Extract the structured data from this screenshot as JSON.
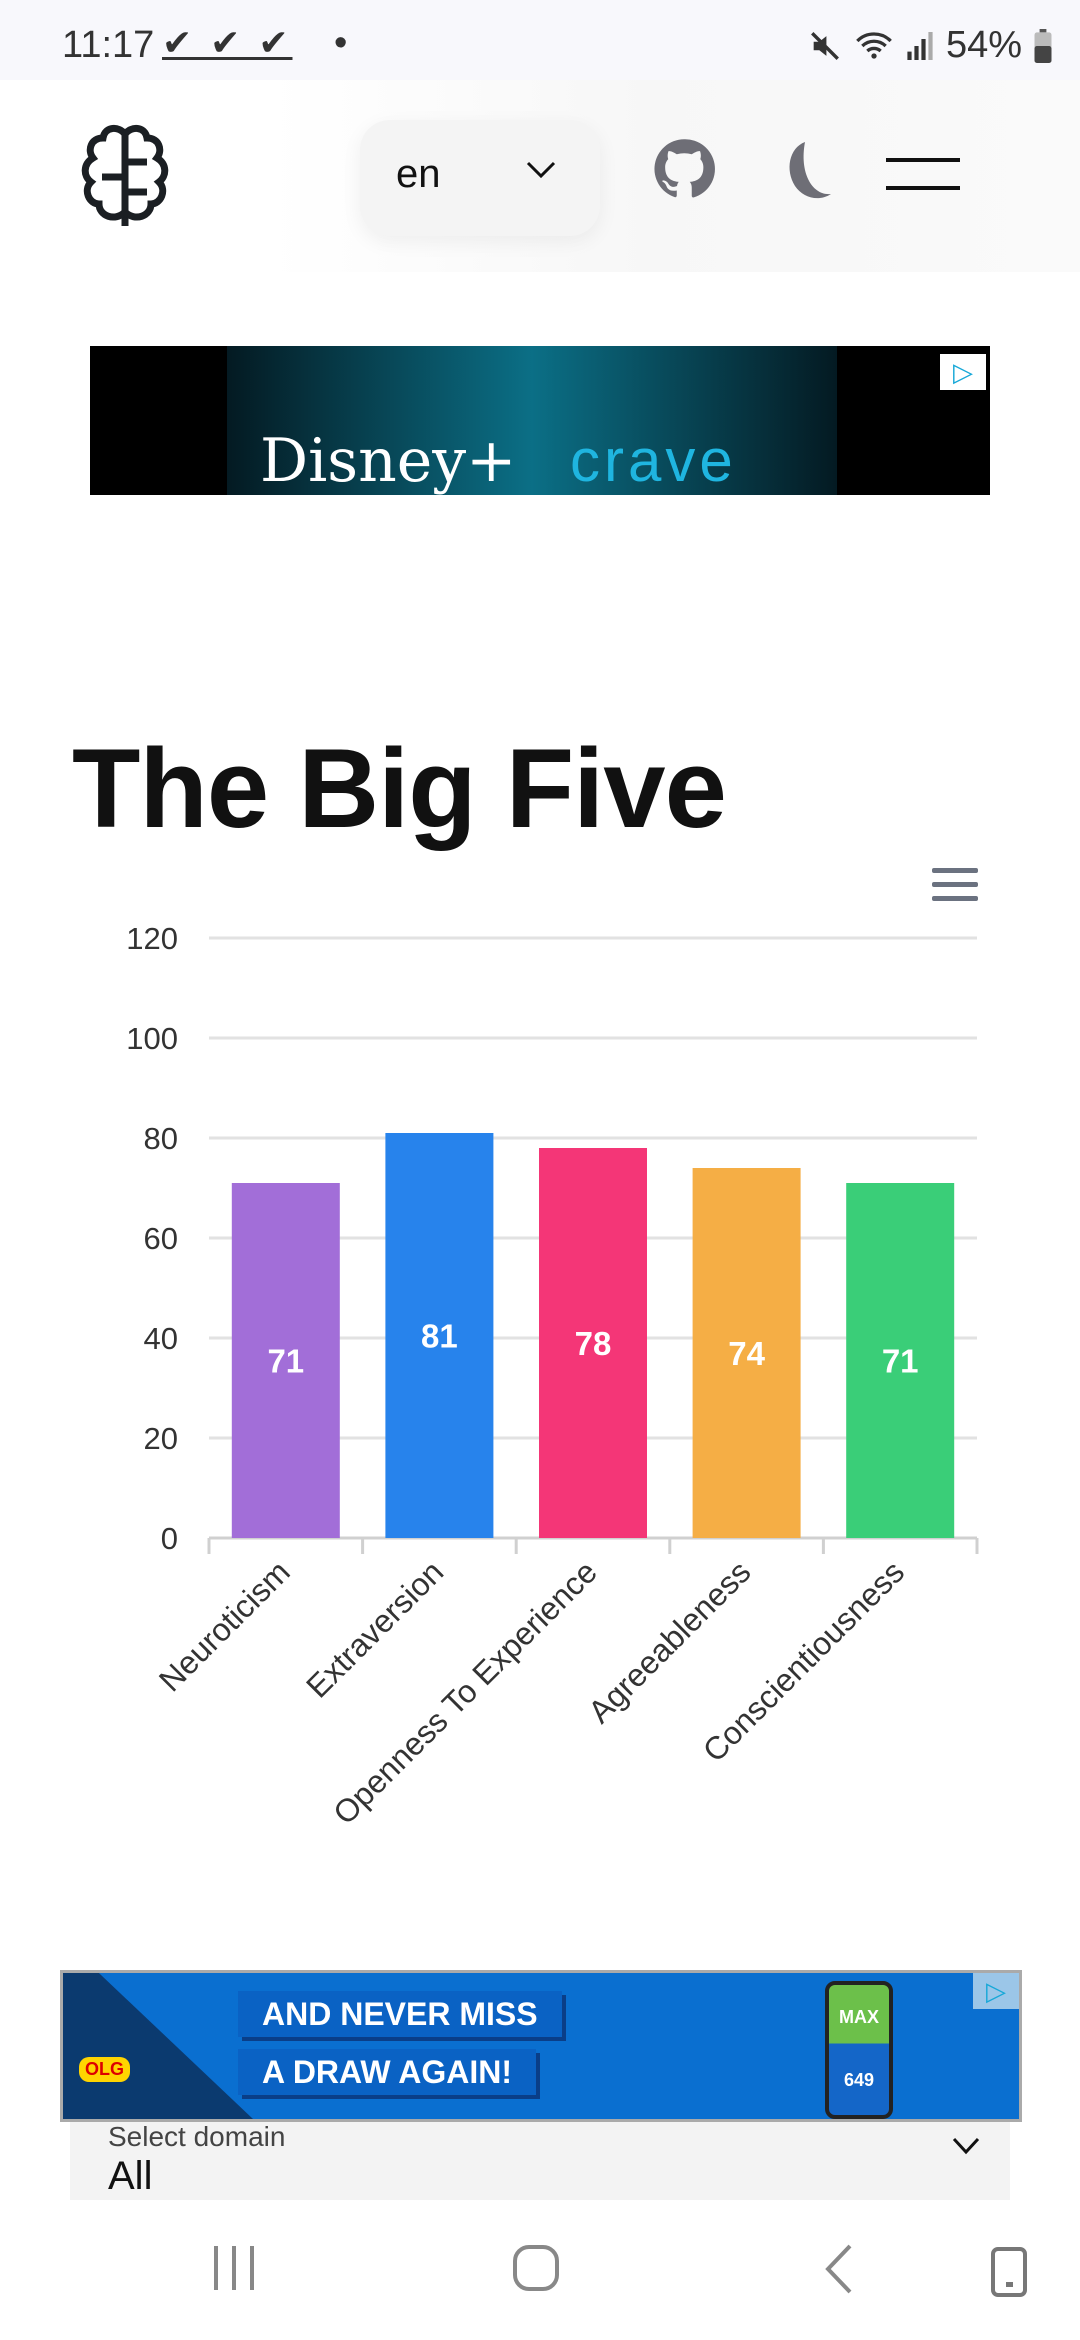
{
  "status_bar": {
    "time": "11:17",
    "notifications": "✔ ✔ ✔",
    "dot": "•",
    "battery": "54%"
  },
  "header": {
    "logo_icon": "brain-icon",
    "language": "en",
    "github_icon": "github-icon",
    "theme_icon": "moon-icon",
    "menu_icon": "hamburger-icon"
  },
  "ad_top": {
    "text_left": "Disney+",
    "text_right": "crave"
  },
  "page": {
    "title": "The Big Five"
  },
  "chart_data": {
    "type": "bar",
    "title": "",
    "categories": [
      "Neuroticism",
      "Extraversion",
      "Openness To Experience",
      "Agreeableness",
      "Conscientiousness"
    ],
    "values": [
      71,
      81,
      78,
      74,
      71
    ],
    "colors": [
      "#a26ed8",
      "#2783ec",
      "#f43677",
      "#f5ae45",
      "#3ace78"
    ],
    "yticks": [
      "0",
      "20",
      "40",
      "60",
      "80",
      "100",
      "120"
    ],
    "ylim": [
      0,
      120
    ],
    "grid": true,
    "data_labels": true
  },
  "ad_bottom": {
    "line1": "AND NEVER MISS",
    "line2": "A DRAW AGAIN!",
    "brand": "OLG",
    "phone_top": "MAX",
    "phone_bottom": "649"
  },
  "domain_select": {
    "label": "Select domain",
    "value": "All"
  }
}
